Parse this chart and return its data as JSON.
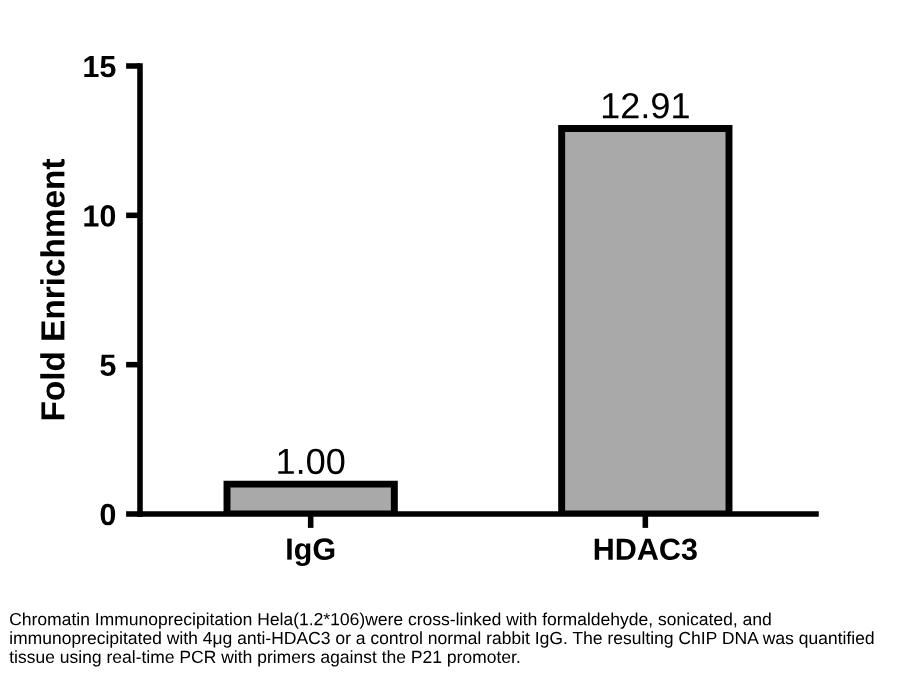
{
  "chart_data": {
    "type": "bar",
    "ylabel": "Fold Enrichment",
    "categories": [
      "IgG",
      "HDAC3"
    ],
    "values": [
      1.0,
      12.91
    ],
    "value_labels": [
      "1.00",
      "12.91"
    ],
    "color": "#a9a9a9",
    "ylim": [
      0,
      15
    ],
    "yticks": [
      0,
      5,
      10,
      15
    ],
    "grid": false,
    "annotations": [
      "Chromatin Immunoprecipitation Hela(1.2*106)were cross-linked with formaldehyde, sonicated, and immunoprecipitated with 4μg anti-HDAC3 or a control normal rabbit IgG. The resulting ChIP DNA was quantified tissue using real-time PCR with primers against the P21 promoter."
    ]
  }
}
